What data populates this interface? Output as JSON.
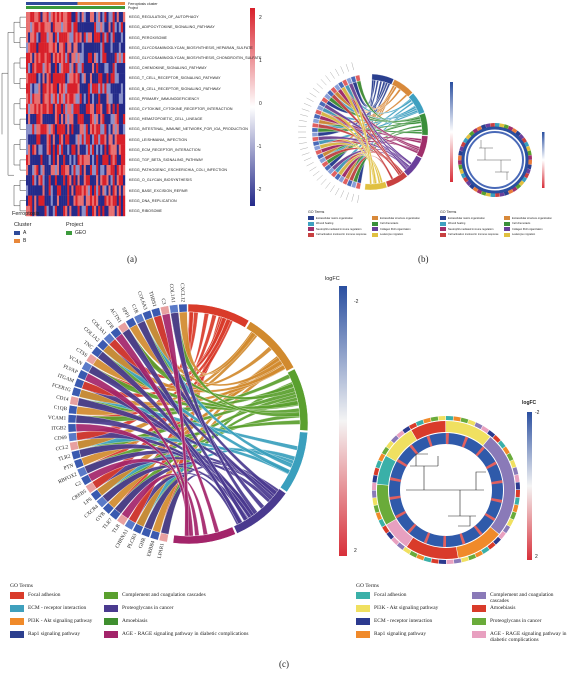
{
  "panel_a": {
    "letter": "(a)",
    "top_bar_title": "Ferroptosis cluster",
    "top_bar_sub": "Project",
    "pathways": [
      "KEGG_REGULATION_OF_AUTOPHAGY",
      "KEGG_ADIPOCYTOKINE_SIGNALING_PATHWAY",
      "KEGG_PEROXISOME",
      "KEGG_GLYCOSAMINOGLYCAN_BIOSYNTHESIS_HEPARAN_SULFATE",
      "KEGG_GLYCOSAMINOGLYCAN_BIOSYNTHESIS_CHONDROITIN_SULFATE",
      "KEGG_CHEMOKINE_SIGNALING_PATHWAY",
      "KEGG_T_CELL_RECEPTOR_SIGNALING_PATHWAY",
      "KEGG_B_CELL_RECEPTOR_SIGNALING_PATHWAY",
      "KEGG_PRIMARY_IMMUNODEFICIENCY",
      "KEGG_CYTOKINE_CYTOKINE_RECEPTOR_INTERACTION",
      "KEGG_HEMATOPOIETIC_CELL_LINEAGE",
      "KEGG_INTESTINAL_IMMUNE_NETWORK_FOR_IGA_PRODUCTION",
      "KEGG_LEISHMANIA_INFECTION",
      "KEGG_ECM_RECEPTOR_INTERACTION",
      "KEGG_TGF_BETA_SIGNALING_PATHWAY",
      "KEGG_PATHOGENIC_ESCHERICHIA_COLI_INFECTION",
      "KEGG_O_GLYCAN_BIOSYNTHESIS",
      "KEGG_BASE_EXCISION_REPAIR",
      "KEGG_DNA_REPLICATION",
      "KEGG_RIBOSOME"
    ],
    "scale_labels": [
      "2",
      "1",
      "0",
      "-1",
      "-2"
    ],
    "legend_title": "Ferroptosis",
    "cluster_label": "Cluster",
    "cluster_items": [
      {
        "name": "A",
        "color": "#2e4a9a"
      },
      {
        "name": "B",
        "color": "#e8873a"
      }
    ],
    "project_label": "Project",
    "project_items": [
      {
        "name": "GEO",
        "color": "#3c9a3c"
      }
    ]
  },
  "panel_b": {
    "letter": "(b)",
    "scale_top": "logFC",
    "go_terms_left_title": "GO Terms",
    "go_terms_right_title": "GO Terms",
    "left_terms": [
      {
        "color": "#2a3f8f",
        "name": "Extracellular matrix organization"
      },
      {
        "color": "#d8893a",
        "name": "Extracellular structure organization"
      },
      {
        "color": "#3fa0c0",
        "name": "Wound healing"
      },
      {
        "color": "#3a8f3a",
        "name": "Cell chemotaxis"
      },
      {
        "color": "#a02f6a",
        "name": "Neutrophil-mediated immune regulation"
      },
      {
        "color": "#6a3f9a",
        "name": "Collagen fibril organization"
      },
      {
        "color": "#c84040",
        "name": "Cell activation involved in immune response"
      },
      {
        "color": "#e0c040",
        "name": "Leukocyte migration"
      }
    ],
    "right_terms": [
      {
        "color": "#2a3f8f",
        "name": "Extracellular matrix organization"
      },
      {
        "color": "#d8893a",
        "name": "Extracellular structure organization"
      },
      {
        "color": "#3fa0c0",
        "name": "Wound healing"
      },
      {
        "color": "#3a8f3a",
        "name": "Cell chemotaxis"
      },
      {
        "color": "#a02f6a",
        "name": "Neutrophil-mediated immune regulation"
      },
      {
        "color": "#6a3f9a",
        "name": "Collagen fibril organization"
      },
      {
        "color": "#c84040",
        "name": "Cell activation involved in immune response"
      },
      {
        "color": "#e0c040",
        "name": "Leukocyte migration"
      }
    ]
  },
  "panel_c": {
    "letter": "(c)",
    "logfc_label": "logFC",
    "scale_top": "-2",
    "scale_bottom": "2",
    "right_scale_top": "-2",
    "right_scale_bottom": "2",
    "right_logfc_label": "logFC",
    "genes": [
      "CXCL12",
      "COL1A1",
      "C3",
      "THBS1",
      "COL6A3",
      "C1R",
      "SPP1",
      "ACTN1",
      "CFB",
      "COL3A1",
      "COL1A2",
      "TNC",
      "CTSS",
      "VCAN",
      "PLVAP",
      "ITGAM",
      "FCER1G",
      "CD14",
      "C1QB",
      "VCAM1",
      "ITGB2",
      "CD69",
      "CCL2",
      "TLR2",
      "PTN",
      "RBFOX2",
      "C2",
      "CREB5",
      "LPS",
      "CXCR4",
      "GYB",
      "TLR7",
      "TLR",
      "CHRNA1",
      "PLCB3",
      "GHR",
      "ERBB4",
      "LPAR1"
    ],
    "arc_sections": [
      {
        "name": "Focal adhesion",
        "color": "#d93b2a"
      },
      {
        "name": "Complement and coagulation cascades",
        "color": "#d18a2e"
      },
      {
        "name": "PI3K - Akt signaling pathway",
        "color": "#5aa02e"
      },
      {
        "name": "ECM - receptor interaction",
        "color": "#3a9fbd"
      },
      {
        "name": "Proteoglycans in cancer",
        "color": "#4a3a8f"
      },
      {
        "name": "AGE - RAGE signaling pathway in diabetic complications",
        "color": "#a3246a"
      }
    ],
    "go_terms_title": "GO Terms",
    "legend_left": [
      {
        "color": "#d93b2a",
        "name": "Focal adhesion"
      },
      {
        "color": "#3fa0bd",
        "name": "ECM - receptor interaction"
      },
      {
        "color": "#f08a2a",
        "name": "PI3K - Akt signaling pathway"
      },
      {
        "color": "#2c3f8f",
        "name": "Rap1 signaling pathway"
      },
      {
        "color": "#5aa02e",
        "name": "Complement and coagulation cascades"
      },
      {
        "color": "#4a3a8f",
        "name": "Proteoglycans in cancer"
      },
      {
        "color": "#3f8f2f",
        "name": "Amoebiasis"
      },
      {
        "color": "#a3246a",
        "name": "AGE - RAGE signaling pathway in diabetic complications"
      }
    ],
    "legend_right": [
      {
        "color": "#3ab0a8",
        "name": "Focal adhesion"
      },
      {
        "color": "#f0e060",
        "name": "PI3K - Akt signaling pathway"
      },
      {
        "color": "#2c3a8f",
        "name": "ECM - receptor interaction"
      },
      {
        "color": "#f08a2a",
        "name": "Rap1 signaling pathway"
      },
      {
        "color": "#8a7ab8",
        "name": "Complement and coagulation cascades"
      },
      {
        "color": "#d93b2a",
        "name": "Amoebiasis"
      },
      {
        "color": "#6aab3a",
        "name": "Proteoglycans in cancer"
      },
      {
        "color": "#e8a0c0",
        "name": "AGE - RAGE signaling pathway in diabetic complications"
      }
    ]
  }
}
